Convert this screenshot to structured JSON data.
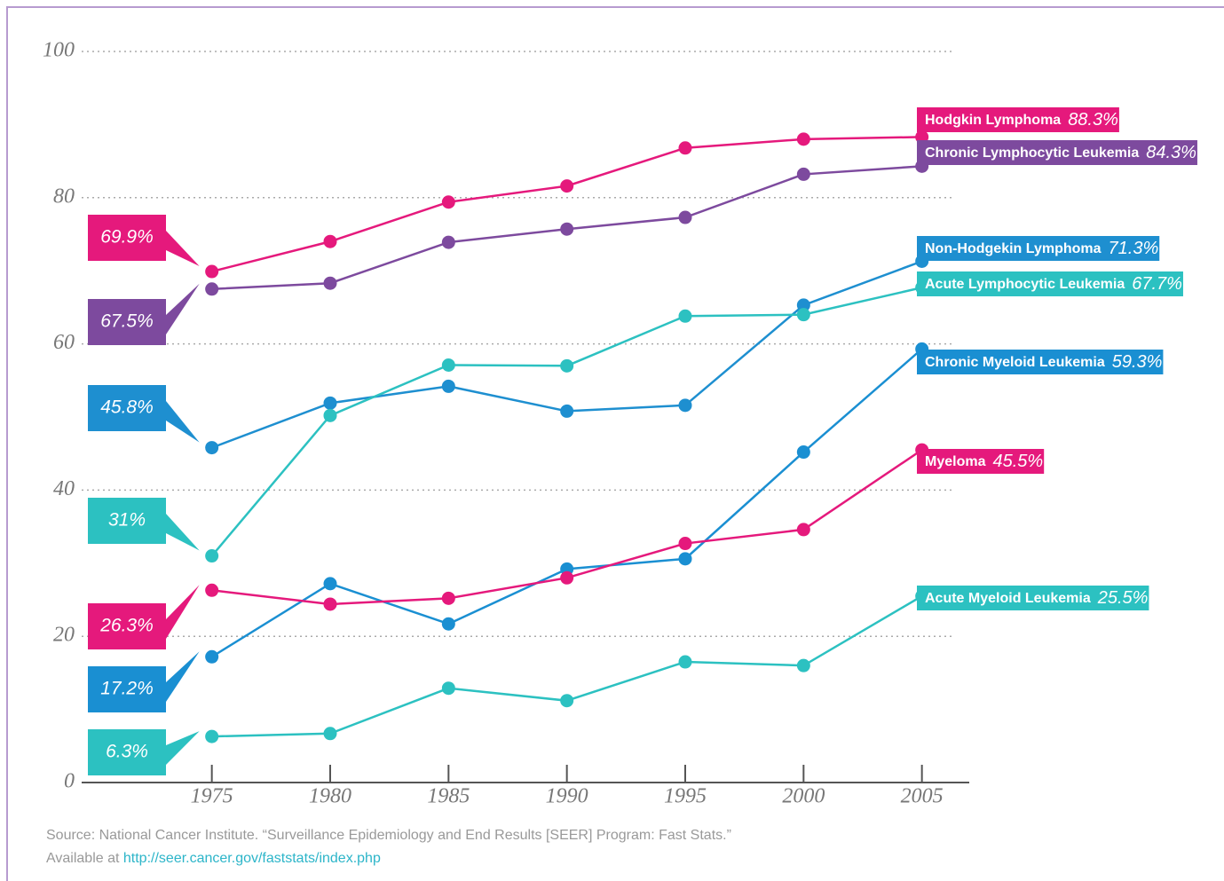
{
  "chart_data": {
    "type": "line",
    "x": [
      1975,
      1980,
      1985,
      1990,
      1995,
      2000,
      2005
    ],
    "xlim": [
      1969.5,
      2007
    ],
    "xticks": [
      1975,
      1980,
      1985,
      1990,
      1995,
      2000,
      2005
    ],
    "ylim": [
      0,
      100
    ],
    "yticks": [
      0,
      20,
      40,
      60,
      80,
      100
    ],
    "grid": true,
    "series": [
      {
        "name": "Hodgkin Lymphoma",
        "color": "#e5197c",
        "values": [
          69.9,
          74.0,
          79.4,
          81.6,
          86.8,
          88.0,
          88.3
        ],
        "value_labels": [
          "69.9%",
          null,
          null,
          null,
          null,
          null,
          "88.3%"
        ]
      },
      {
        "name": "Chronic Lymphocytic Leukemia",
        "color": "#7d4a9e",
        "values": [
          67.5,
          68.3,
          73.9,
          75.7,
          77.3,
          83.2,
          84.3
        ],
        "value_labels": [
          "67.5%",
          null,
          null,
          null,
          null,
          null,
          "84.3%"
        ]
      },
      {
        "name": "Non-Hodgekin Lymphoma",
        "color": "#1e8fd0",
        "values": [
          45.8,
          51.9,
          54.2,
          50.8,
          51.6,
          65.3,
          71.3
        ],
        "value_labels": [
          "45.8%",
          null,
          null,
          null,
          null,
          null,
          "71.3%"
        ]
      },
      {
        "name": "Acute Lymphocytic Leukemia",
        "color": "#2cc1c1",
        "values": [
          31,
          50.2,
          57.1,
          57.0,
          63.8,
          64.0,
          67.7
        ],
        "value_labels": [
          "31%",
          null,
          null,
          null,
          null,
          null,
          "67.7%"
        ]
      },
      {
        "name": "Chronic Myeloid Leukemia",
        "color": "#1a8fd2",
        "values": [
          17.2,
          27.2,
          21.7,
          29.2,
          30.6,
          45.2,
          59.3
        ],
        "value_labels": [
          "17.2%",
          null,
          null,
          null,
          null,
          null,
          "59.3%"
        ]
      },
      {
        "name": "Myeloma",
        "color": "#e5197c",
        "values": [
          26.3,
          24.4,
          25.2,
          28.0,
          32.7,
          34.6,
          45.5
        ],
        "value_labels": [
          "26.3%",
          null,
          null,
          null,
          null,
          null,
          "45.5%"
        ]
      },
      {
        "name": "Acute Myeloid Leukemia",
        "color": "#2cc1c1",
        "values": [
          6.3,
          6.7,
          12.9,
          11.2,
          16.5,
          16.0,
          25.5
        ],
        "value_labels": [
          "6.3%",
          null,
          null,
          null,
          null,
          null,
          "25.5%"
        ]
      }
    ],
    "source_line1": "Source: National Cancer Institute. “Surveillance Epidemiology and End Results [SEER] Program: Fast Stats.”",
    "source_line2": "Available at",
    "source_link": "http://seer.cancer.gov/faststats/index.php"
  }
}
